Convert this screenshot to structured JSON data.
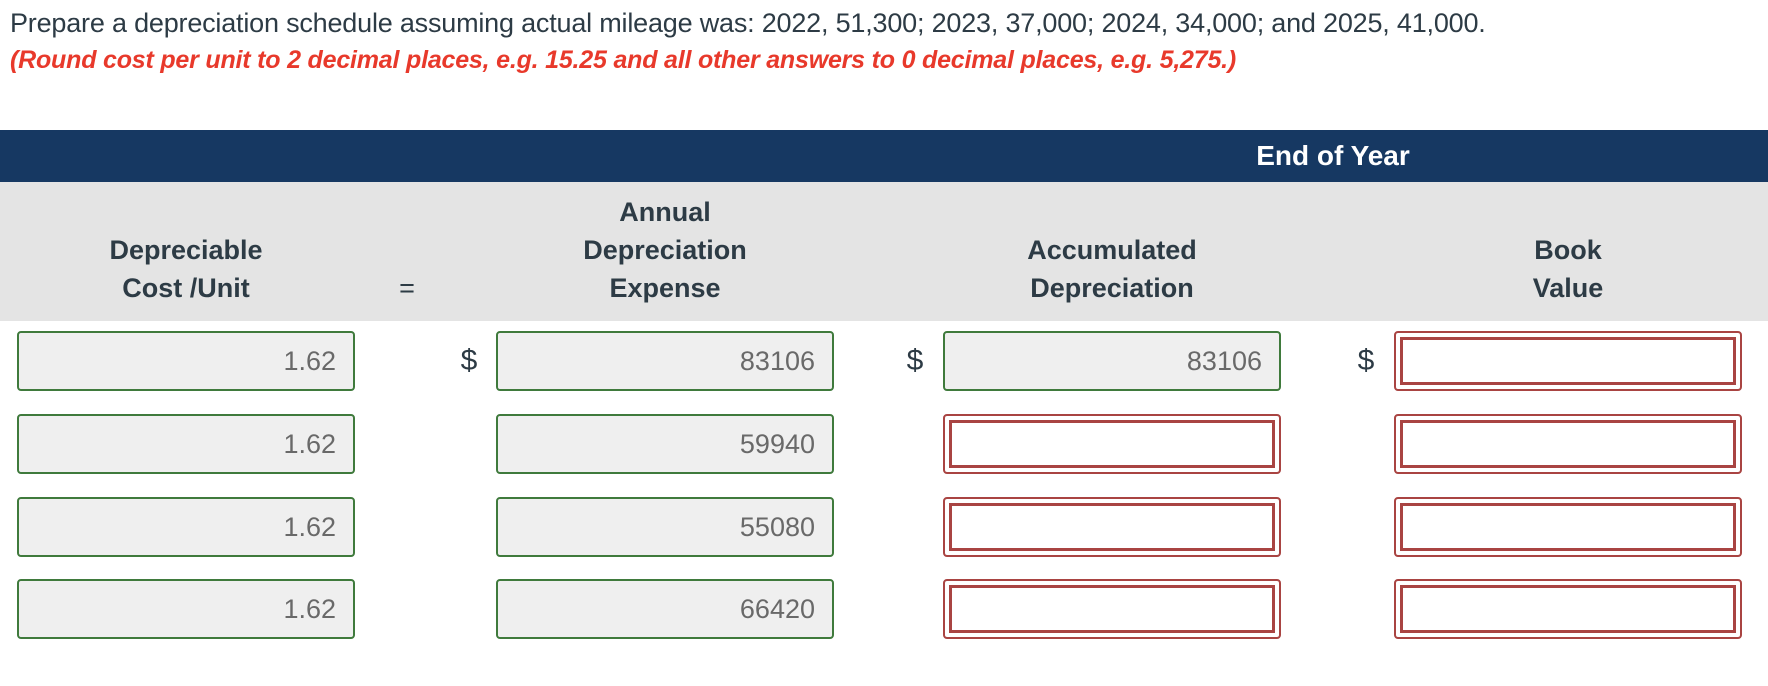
{
  "instructions": {
    "line1": "Prepare a depreciation schedule assuming actual mileage was: 2022, 51,300; 2023, 37,000; 2024, 34,000; and 2025, 41,000.",
    "line2": "(Round cost per unit to 2 decimal places, e.g. 15.25 and all other answers to 0 decimal places, e.g. 5,275.)"
  },
  "table": {
    "banner_label": "End of Year",
    "equals_sign": "=",
    "dollar_sign": "$",
    "column_headers": [
      {
        "id": "depreciable-cost-unit",
        "lines": [
          "Depreciable",
          "Cost /Unit"
        ]
      },
      {
        "id": "annual-depreciation-expense",
        "lines": [
          "Annual",
          "Depreciation",
          "Expense"
        ]
      },
      {
        "id": "accumulated-depreciation",
        "lines": [
          "Accumulated",
          "Depreciation"
        ]
      },
      {
        "id": "book-value",
        "lines": [
          "Book",
          "Value"
        ]
      }
    ],
    "rows": [
      {
        "depreciable_cost_per_unit": "1.62",
        "annual_depreciation_expense": "83106",
        "accumulated_depreciation": "83106",
        "book_value": ""
      },
      {
        "depreciable_cost_per_unit": "1.62",
        "annual_depreciation_expense": "59940",
        "accumulated_depreciation": "",
        "book_value": ""
      },
      {
        "depreciable_cost_per_unit": "1.62",
        "annual_depreciation_expense": "55080",
        "accumulated_depreciation": "",
        "book_value": ""
      },
      {
        "depreciable_cost_per_unit": "1.62",
        "annual_depreciation_expense": "66420",
        "accumulated_depreciation": "",
        "book_value": ""
      }
    ]
  },
  "colors": {
    "banner_background": "#163862",
    "header_band_background": "#E4E4E4",
    "filled_field_border": "#3F7A3C",
    "filled_field_background": "#EFEFEF",
    "empty_field_border": "#A94442",
    "note_text": "#E8392B",
    "heading_text": "#2D3B45",
    "field_value_text": "#696969"
  }
}
